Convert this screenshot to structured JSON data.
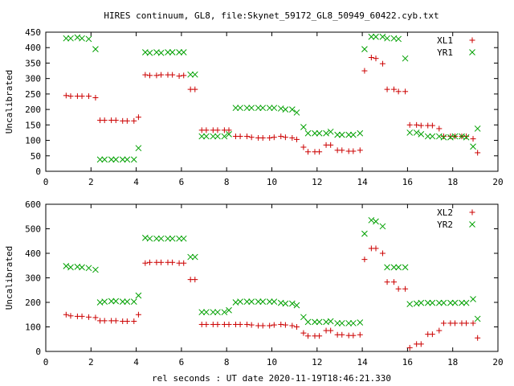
{
  "title": "HIRES continuum, GL8, file:Skynet_59172_GL8_50949_60422.cyb.txt",
  "xlabel": "rel seconds : UT date 2020-11-19T18:46:21.330",
  "colors": {
    "red": "#cc0000",
    "green": "#00a000"
  },
  "chart_data": [
    {
      "type": "scatter",
      "ylabel": "Uncalibrated",
      "xlim": [
        0,
        20
      ],
      "ylim": [
        0,
        450
      ],
      "xticks": [
        0,
        2,
        4,
        6,
        8,
        10,
        12,
        14,
        16,
        18,
        20
      ],
      "yticks": [
        0,
        50,
        100,
        150,
        200,
        250,
        300,
        350,
        400,
        450
      ],
      "legend_position": "top-right",
      "series": [
        {
          "name": "XL1",
          "marker": "plus",
          "color": "#cc0000",
          "x": [
            0.9,
            1.1,
            1.4,
            1.6,
            1.9,
            2.2,
            2.4,
            2.6,
            2.9,
            3.1,
            3.4,
            3.6,
            3.9,
            4.1,
            4.4,
            4.6,
            4.9,
            5.1,
            5.4,
            5.6,
            5.9,
            6.1,
            6.4,
            6.6,
            6.9,
            7.1,
            7.4,
            7.6,
            7.9,
            8.1,
            8.4,
            8.6,
            8.9,
            9.1,
            9.4,
            9.6,
            9.9,
            10.1,
            10.4,
            10.6,
            10.9,
            11.1,
            11.4,
            11.6,
            11.9,
            12.1,
            12.4,
            12.6,
            12.9,
            13.1,
            13.4,
            13.6,
            13.9,
            14.1,
            14.4,
            14.6,
            14.9,
            15.1,
            15.4,
            15.6,
            15.9,
            16.1,
            16.4,
            16.6,
            16.9,
            17.1,
            17.4,
            17.6,
            17.9,
            18.1,
            18.4,
            18.6,
            18.9,
            19.1
          ],
          "y": [
            245,
            243,
            243,
            243,
            243,
            238,
            165,
            165,
            165,
            165,
            163,
            163,
            163,
            175,
            312,
            310,
            310,
            312,
            312,
            312,
            308,
            310,
            265,
            265,
            133,
            133,
            133,
            133,
            133,
            133,
            113,
            113,
            113,
            110,
            108,
            108,
            108,
            110,
            113,
            110,
            108,
            103,
            78,
            63,
            63,
            63,
            85,
            85,
            68,
            68,
            65,
            65,
            68,
            325,
            368,
            365,
            348,
            265,
            265,
            258,
            258,
            150,
            150,
            148,
            148,
            148,
            138,
            113,
            113,
            113,
            113,
            113,
            105,
            60
          ]
        },
        {
          "name": "YR1",
          "marker": "cross",
          "color": "#00a000",
          "x": [
            0.9,
            1.1,
            1.4,
            1.6,
            1.9,
            2.2,
            2.4,
            2.6,
            2.9,
            3.1,
            3.4,
            3.6,
            3.9,
            4.1,
            4.4,
            4.6,
            4.9,
            5.1,
            5.4,
            5.6,
            5.9,
            6.1,
            6.4,
            6.6,
            6.9,
            7.1,
            7.4,
            7.6,
            7.9,
            8.1,
            8.4,
            8.6,
            8.9,
            9.1,
            9.4,
            9.6,
            9.9,
            10.1,
            10.4,
            10.6,
            10.9,
            11.1,
            11.4,
            11.6,
            11.9,
            12.1,
            12.4,
            12.6,
            12.9,
            13.1,
            13.4,
            13.6,
            13.9,
            14.1,
            14.4,
            14.6,
            14.9,
            15.1,
            15.4,
            15.6,
            15.9,
            16.1,
            16.4,
            16.6,
            16.9,
            17.1,
            17.4,
            17.6,
            17.9,
            18.1,
            18.4,
            18.6,
            18.9,
            19.1
          ],
          "y": [
            430,
            430,
            433,
            430,
            428,
            395,
            38,
            38,
            38,
            38,
            38,
            38,
            38,
            75,
            385,
            383,
            385,
            383,
            385,
            385,
            385,
            385,
            313,
            313,
            113,
            113,
            113,
            113,
            113,
            120,
            205,
            205,
            205,
            205,
            205,
            205,
            205,
            205,
            203,
            200,
            200,
            190,
            143,
            123,
            123,
            123,
            123,
            128,
            118,
            118,
            118,
            118,
            123,
            395,
            435,
            435,
            435,
            430,
            430,
            428,
            365,
            125,
            125,
            120,
            113,
            113,
            113,
            110,
            110,
            113,
            113,
            110,
            80,
            138
          ]
        }
      ]
    },
    {
      "type": "scatter",
      "ylabel": "Uncalibrated",
      "xlim": [
        0,
        20
      ],
      "ylim": [
        0,
        600
      ],
      "xticks": [
        0,
        2,
        4,
        6,
        8,
        10,
        12,
        14,
        16,
        18,
        20
      ],
      "yticks": [
        0,
        100,
        200,
        300,
        400,
        500,
        600
      ],
      "legend_position": "top-right",
      "series": [
        {
          "name": "XL2",
          "marker": "plus",
          "color": "#cc0000",
          "x": [
            0.9,
            1.1,
            1.4,
            1.6,
            1.9,
            2.2,
            2.4,
            2.6,
            2.9,
            3.1,
            3.4,
            3.6,
            3.9,
            4.1,
            4.4,
            4.6,
            4.9,
            5.1,
            5.4,
            5.6,
            5.9,
            6.1,
            6.4,
            6.6,
            6.9,
            7.1,
            7.4,
            7.6,
            7.9,
            8.1,
            8.4,
            8.6,
            8.9,
            9.1,
            9.4,
            9.6,
            9.9,
            10.1,
            10.4,
            10.6,
            10.9,
            11.1,
            11.4,
            11.6,
            11.9,
            12.1,
            12.4,
            12.6,
            12.9,
            13.1,
            13.4,
            13.6,
            13.9,
            14.1,
            14.4,
            14.6,
            14.9,
            15.1,
            15.4,
            15.6,
            15.9,
            16.1,
            16.4,
            16.6,
            16.9,
            17.1,
            17.4,
            17.6,
            17.9,
            18.1,
            18.4,
            18.6,
            18.9,
            19.1
          ],
          "y": [
            150,
            145,
            143,
            143,
            140,
            138,
            125,
            125,
            125,
            125,
            123,
            123,
            123,
            150,
            360,
            363,
            363,
            363,
            363,
            363,
            360,
            360,
            293,
            293,
            110,
            110,
            110,
            110,
            110,
            110,
            110,
            110,
            110,
            108,
            105,
            105,
            105,
            108,
            110,
            108,
            105,
            100,
            75,
            63,
            63,
            63,
            85,
            85,
            68,
            68,
            65,
            65,
            68,
            375,
            420,
            420,
            400,
            283,
            283,
            255,
            255,
            15,
            30,
            30,
            70,
            70,
            85,
            115,
            115,
            115,
            115,
            115,
            115,
            55
          ]
        },
        {
          "name": "YR2",
          "marker": "cross",
          "color": "#00a000",
          "x": [
            0.9,
            1.1,
            1.4,
            1.6,
            1.9,
            2.2,
            2.4,
            2.6,
            2.9,
            3.1,
            3.4,
            3.6,
            3.9,
            4.1,
            4.4,
            4.6,
            4.9,
            5.1,
            5.4,
            5.6,
            5.9,
            6.1,
            6.4,
            6.6,
            6.9,
            7.1,
            7.4,
            7.6,
            7.9,
            8.1,
            8.4,
            8.6,
            8.9,
            9.1,
            9.4,
            9.6,
            9.9,
            10.1,
            10.4,
            10.6,
            10.9,
            11.1,
            11.4,
            11.6,
            11.9,
            12.1,
            12.4,
            12.6,
            12.9,
            13.1,
            13.4,
            13.6,
            13.9,
            14.1,
            14.4,
            14.6,
            14.9,
            15.1,
            15.4,
            15.6,
            15.9,
            16.1,
            16.4,
            16.6,
            16.9,
            17.1,
            17.4,
            17.6,
            17.9,
            18.1,
            18.4,
            18.6,
            18.9,
            19.1
          ],
          "y": [
            348,
            343,
            345,
            343,
            340,
            333,
            200,
            203,
            205,
            205,
            203,
            203,
            203,
            228,
            463,
            460,
            460,
            460,
            460,
            460,
            460,
            460,
            385,
            385,
            160,
            160,
            160,
            160,
            160,
            168,
            200,
            203,
            203,
            203,
            203,
            203,
            203,
            203,
            198,
            195,
            195,
            188,
            140,
            120,
            120,
            120,
            120,
            123,
            115,
            115,
            115,
            115,
            118,
            480,
            535,
            530,
            510,
            343,
            343,
            343,
            343,
            193,
            195,
            198,
            198,
            198,
            198,
            198,
            198,
            198,
            198,
            198,
            213,
            133
          ]
        }
      ]
    }
  ]
}
